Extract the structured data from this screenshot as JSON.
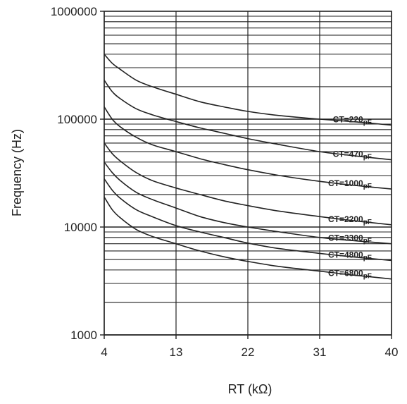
{
  "chart_data": {
    "type": "line",
    "title": "",
    "xlabel": "RT (kΩ)",
    "ylabel": "Frequency (Hz)",
    "x_scale": "linear",
    "y_scale": "log",
    "xlim": [
      4,
      40
    ],
    "ylim": [
      1000,
      1000000
    ],
    "x_ticks": [
      4,
      13,
      22,
      31,
      40
    ],
    "x_tick_labels": [
      "4",
      "13",
      "22",
      "31",
      "40"
    ],
    "y_ticks": [
      1000,
      10000,
      100000,
      1000000
    ],
    "y_tick_labels": [
      "1000",
      "10000",
      "100000",
      "1000000"
    ],
    "grid": true,
    "colors": {
      "line": "#222222",
      "grid": "#222222",
      "background": "#ffffff"
    },
    "x": [
      4,
      5,
      6,
      8,
      10,
      13,
      16,
      19,
      22,
      26,
      31,
      35,
      40
    ],
    "series": [
      {
        "name": "CT=220pF",
        "label_main": "CT=220",
        "label_sub": "pF",
        "values": [
          400000,
          330000,
          290000,
          230000,
          200000,
          170000,
          145000,
          130000,
          118000,
          108000,
          100000,
          95000,
          88000
        ]
      },
      {
        "name": "CT=470pF",
        "label_main": "CT=470",
        "label_sub": "pF",
        "values": [
          230000,
          180000,
          155000,
          125000,
          110000,
          95000,
          83000,
          74000,
          66000,
          58000,
          50000,
          46000,
          42000
        ]
      },
      {
        "name": "CT=1000pF",
        "label_main": "CT=1000",
        "label_sub": "pF",
        "values": [
          130000,
          100000,
          85000,
          68000,
          58000,
          50000,
          43000,
          38000,
          34000,
          30000,
          26500,
          24500,
          22500
        ]
      },
      {
        "name": "CT=2200pF",
        "label_main": "CT=2200",
        "label_sub": "pF",
        "values": [
          60000,
          48000,
          41000,
          32000,
          27000,
          23000,
          20000,
          17500,
          15800,
          14000,
          12500,
          11500,
          10500
        ]
      },
      {
        "name": "CT=3300pF",
        "label_main": "CT=3300",
        "label_sub": "pF",
        "values": [
          40000,
          32000,
          27000,
          21000,
          18000,
          15000,
          12500,
          11000,
          10000,
          9000,
          8000,
          7500,
          7000
        ]
      },
      {
        "name": "CT=4800pF",
        "label_main": "CT=4800",
        "label_sub": "pF",
        "values": [
          28000,
          22000,
          18500,
          14500,
          12500,
          10300,
          9000,
          8000,
          7100,
          6300,
          5700,
          5300,
          4900
        ]
      },
      {
        "name": "CT=6800pF",
        "label_main": "CT=6800",
        "label_sub": "pF",
        "values": [
          19000,
          14500,
          12200,
          9500,
          8200,
          7000,
          6000,
          5300,
          4800,
          4300,
          3900,
          3600,
          3300
        ]
      }
    ]
  }
}
